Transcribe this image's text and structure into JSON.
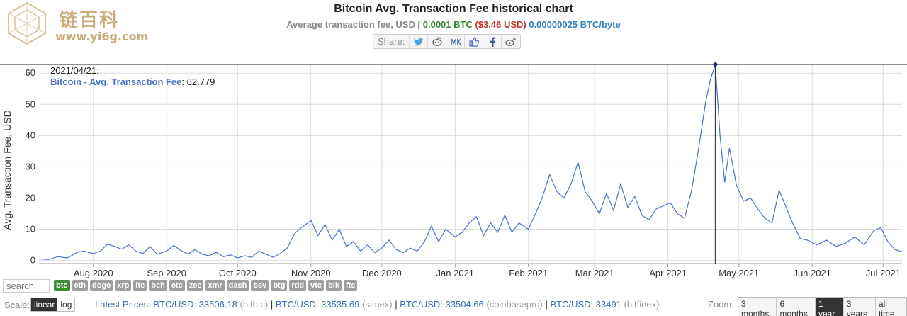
{
  "logo": {
    "cn": "链百科",
    "url": "www.yi6g.com"
  },
  "title": "Bitcoin Avg. Transaction Fee historical chart",
  "subtitle": {
    "prefix": "Average transaction fee, USD",
    "sep": " | ",
    "btc": "0.0001 BTC",
    "usd": "($3.46 USD)",
    "perbyte": "0.00000025 BTC/byte"
  },
  "share": {
    "label": "Share:",
    "icons": [
      "twitter-icon",
      "reddit-icon",
      "vk-icon",
      "like-icon",
      "facebook-icon",
      "weibo-icon"
    ]
  },
  "search": {
    "placeholder": "search"
  },
  "coins": [
    {
      "label": "btc",
      "active": true
    },
    {
      "label": "eth"
    },
    {
      "label": "doge"
    },
    {
      "label": "xrp"
    },
    {
      "label": "ltc"
    },
    {
      "label": "bch"
    },
    {
      "label": "etc"
    },
    {
      "label": "zec"
    },
    {
      "label": "xmr"
    },
    {
      "label": "dash"
    },
    {
      "label": "bsv"
    },
    {
      "label": "btg"
    },
    {
      "label": "rdd"
    },
    {
      "label": "vtc"
    },
    {
      "label": "blk"
    },
    {
      "label": "ftc"
    }
  ],
  "scale": {
    "label": "Scale:",
    "options": [
      "linear",
      "log"
    ],
    "selected": "linear"
  },
  "prices": {
    "label": "Latest Prices:",
    "items": [
      {
        "pair": "BTC/USD: 33506.18",
        "exchange": "(hitbtc)"
      },
      {
        "pair": "BTC/USD: 33535.69",
        "exchange": "(simex)"
      },
      {
        "pair": "BTC/USD: 33504.66",
        "exchange": "(coinbasepro)"
      },
      {
        "pair": "BTC/USD: 33491",
        "exchange": "(bitfinex)"
      }
    ]
  },
  "zoom": {
    "label": "Zoom:",
    "options": [
      "3 months",
      "6 months",
      "1 year",
      "3 years",
      "all time"
    ],
    "selected": "1 year"
  },
  "tooltip": {
    "date": "2021/04/21:",
    "series": "Bitcoin - Avg. Transaction Fee",
    "value": "62.779"
  },
  "chart_data": {
    "type": "line",
    "ylabel": "Avg. Transaction Fee, USD",
    "ylim": [
      -1,
      63
    ],
    "yticks": [
      0,
      10,
      20,
      30,
      40,
      50,
      60
    ],
    "xlim": [
      "2020-07-09",
      "2021-07-09"
    ],
    "xticks": [
      {
        "date": "2020-08-01",
        "label": "Aug 2020"
      },
      {
        "date": "2020-09-01",
        "label": "Sep 2020"
      },
      {
        "date": "2020-10-01",
        "label": "Oct 2020"
      },
      {
        "date": "2020-11-01",
        "label": "Nov 2020"
      },
      {
        "date": "2020-12-01",
        "label": "Dec 2020"
      },
      {
        "date": "2021-01-01",
        "label": "Jan 2021"
      },
      {
        "date": "2021-02-01",
        "label": "Feb 2021"
      },
      {
        "date": "2021-03-01",
        "label": "Mar 2021"
      },
      {
        "date": "2021-04-01",
        "label": "Apr 2021"
      },
      {
        "date": "2021-05-01",
        "label": "May 2021"
      },
      {
        "date": "2021-06-01",
        "label": "Jun 2021"
      },
      {
        "date": "2021-07-01",
        "label": "Jul 2021"
      }
    ],
    "grid": true,
    "line_color": "#4a72c8",
    "crosshair": {
      "date": "2021-04-21",
      "value": 62.779
    },
    "series": [
      {
        "points": [
          [
            "2020-07-09",
            0.5
          ],
          [
            "2020-07-13",
            0.3
          ],
          [
            "2020-07-17",
            1.2
          ],
          [
            "2020-07-21",
            0.8
          ],
          [
            "2020-07-25",
            2.5
          ],
          [
            "2020-07-28",
            3.0
          ],
          [
            "2020-08-01",
            2.2
          ],
          [
            "2020-08-04",
            3.0
          ],
          [
            "2020-08-07",
            5.2
          ],
          [
            "2020-08-10",
            4.5
          ],
          [
            "2020-08-13",
            3.6
          ],
          [
            "2020-08-16",
            5.0
          ],
          [
            "2020-08-19",
            3.0
          ],
          [
            "2020-08-22",
            2.2
          ],
          [
            "2020-08-25",
            4.5
          ],
          [
            "2020-08-28",
            2.0
          ],
          [
            "2020-09-01",
            3.0
          ],
          [
            "2020-09-04",
            4.8
          ],
          [
            "2020-09-07",
            3.2
          ],
          [
            "2020-09-10",
            2.0
          ],
          [
            "2020-09-13",
            3.5
          ],
          [
            "2020-09-16",
            2.0
          ],
          [
            "2020-09-19",
            1.5
          ],
          [
            "2020-09-22",
            2.6
          ],
          [
            "2020-09-25",
            1.2
          ],
          [
            "2020-09-28",
            1.8
          ],
          [
            "2020-10-01",
            0.8
          ],
          [
            "2020-10-04",
            1.5
          ],
          [
            "2020-10-07",
            1.0
          ],
          [
            "2020-10-10",
            3.0
          ],
          [
            "2020-10-13",
            2.0
          ],
          [
            "2020-10-16",
            1.0
          ],
          [
            "2020-10-19",
            2.2
          ],
          [
            "2020-10-22",
            4.0
          ],
          [
            "2020-10-25",
            8.5
          ],
          [
            "2020-10-28",
            10.5
          ],
          [
            "2020-11-01",
            12.8
          ],
          [
            "2020-11-04",
            8.0
          ],
          [
            "2020-11-07",
            11.5
          ],
          [
            "2020-11-10",
            6.5
          ],
          [
            "2020-11-13",
            10.0
          ],
          [
            "2020-11-16",
            4.5
          ],
          [
            "2020-11-19",
            6.0
          ],
          [
            "2020-11-22",
            3.0
          ],
          [
            "2020-11-25",
            5.0
          ],
          [
            "2020-11-28",
            2.5
          ],
          [
            "2020-12-01",
            4.0
          ],
          [
            "2020-12-04",
            6.5
          ],
          [
            "2020-12-07",
            3.5
          ],
          [
            "2020-12-10",
            2.5
          ],
          [
            "2020-12-13",
            4.0
          ],
          [
            "2020-12-16",
            3.0
          ],
          [
            "2020-12-19",
            6.0
          ],
          [
            "2020-12-22",
            11.0
          ],
          [
            "2020-12-25",
            6.0
          ],
          [
            "2020-12-28",
            10.0
          ],
          [
            "2021-01-01",
            7.5
          ],
          [
            "2021-01-04",
            9.0
          ],
          [
            "2021-01-07",
            12.0
          ],
          [
            "2021-01-10",
            14.0
          ],
          [
            "2021-01-13",
            8.0
          ],
          [
            "2021-01-16",
            12.0
          ],
          [
            "2021-01-19",
            9.0
          ],
          [
            "2021-01-22",
            14.5
          ],
          [
            "2021-01-25",
            9.0
          ],
          [
            "2021-01-28",
            12.0
          ],
          [
            "2021-02-01",
            10.0
          ],
          [
            "2021-02-04",
            15.0
          ],
          [
            "2021-02-07",
            20.5
          ],
          [
            "2021-02-10",
            27.5
          ],
          [
            "2021-02-13",
            22.0
          ],
          [
            "2021-02-16",
            20.0
          ],
          [
            "2021-02-19",
            24.5
          ],
          [
            "2021-02-22",
            31.5
          ],
          [
            "2021-02-25",
            22.0
          ],
          [
            "2021-02-28",
            19.0
          ],
          [
            "2021-03-03",
            15.0
          ],
          [
            "2021-03-06",
            21.5
          ],
          [
            "2021-03-09",
            16.0
          ],
          [
            "2021-03-12",
            24.5
          ],
          [
            "2021-03-15",
            17.0
          ],
          [
            "2021-03-18",
            20.5
          ],
          [
            "2021-03-21",
            14.5
          ],
          [
            "2021-03-24",
            13.0
          ],
          [
            "2021-03-27",
            16.5
          ],
          [
            "2021-03-30",
            17.5
          ],
          [
            "2021-04-02",
            18.5
          ],
          [
            "2021-04-05",
            15.0
          ],
          [
            "2021-04-08",
            13.5
          ],
          [
            "2021-04-11",
            22.5
          ],
          [
            "2021-04-14",
            36.0
          ],
          [
            "2021-04-17",
            51.0
          ],
          [
            "2021-04-19",
            58.0
          ],
          [
            "2021-04-21",
            62.779
          ],
          [
            "2021-04-23",
            40.0
          ],
          [
            "2021-04-25",
            25.0
          ],
          [
            "2021-04-27",
            36.0
          ],
          [
            "2021-04-30",
            24.0
          ],
          [
            "2021-05-03",
            19.0
          ],
          [
            "2021-05-06",
            20.0
          ],
          [
            "2021-05-09",
            16.5
          ],
          [
            "2021-05-12",
            13.5
          ],
          [
            "2021-05-15",
            12.0
          ],
          [
            "2021-05-18",
            22.5
          ],
          [
            "2021-05-21",
            17.0
          ],
          [
            "2021-05-24",
            11.5
          ],
          [
            "2021-05-27",
            7.0
          ],
          [
            "2021-05-30",
            6.5
          ],
          [
            "2021-06-03",
            5.0
          ],
          [
            "2021-06-07",
            6.5
          ],
          [
            "2021-06-11",
            4.5
          ],
          [
            "2021-06-15",
            5.5
          ],
          [
            "2021-06-19",
            7.5
          ],
          [
            "2021-06-23",
            5.0
          ],
          [
            "2021-06-27",
            9.5
          ],
          [
            "2021-06-30",
            10.5
          ],
          [
            "2021-07-03",
            6.0
          ],
          [
            "2021-07-06",
            3.5
          ],
          [
            "2021-07-09",
            2.8
          ]
        ]
      }
    ]
  }
}
